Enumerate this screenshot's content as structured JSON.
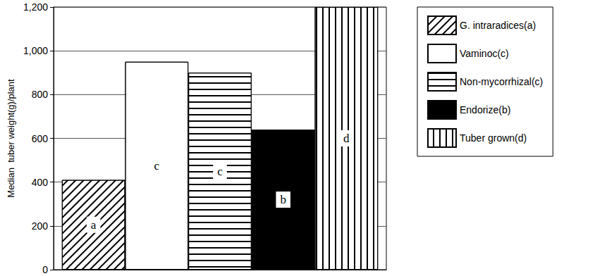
{
  "chart_data": {
    "type": "bar",
    "y_label": "Median  tuber weight(g)/plant",
    "categories": [
      null
    ],
    "series": [
      {
        "name": "G. intraradices(a)",
        "color": "#ffffff",
        "values": [
          410
        ]
      },
      {
        "name": "Vaminoc(c)",
        "color": "#ffffff",
        "values": [
          950
        ]
      },
      {
        "name": "Non-mycorrhizal(c)",
        "color": "#ffffff",
        "values": [
          900
        ]
      },
      {
        "name": "Endorize(b)",
        "color": "#000000",
        "values": [
          640
        ]
      },
      {
        "name": "Tuber grown(d)",
        "color": "#ffffff",
        "values": [
          1200
        ]
      }
    ],
    "annotations": [
      "a",
      "c",
      "c",
      "b",
      "d"
    ],
    "ylim": [
      0,
      1200
    ],
    "yticks": [
      0,
      200,
      400,
      600,
      800,
      1000,
      1200
    ],
    "grid": true,
    "legend": "right",
    "tick_labels": "y"
  }
}
